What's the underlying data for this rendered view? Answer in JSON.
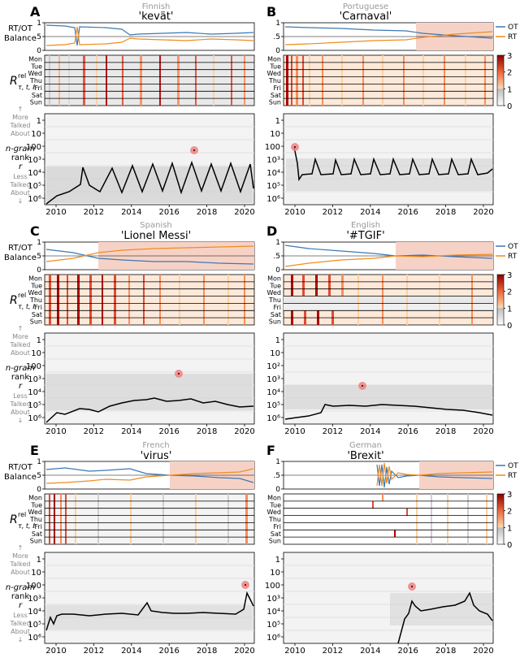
{
  "figure": {
    "ylabels": {
      "balance": "RT/OT Balance",
      "rtel": "R",
      "rtel_sup": "rel",
      "rtel_sub": "τ, t, ℓ",
      "more": [
        "↑",
        "More",
        "Talked",
        "About"
      ],
      "rank": [
        "n-gram",
        "rank",
        "r"
      ],
      "less": [
        "Less",
        "Talked",
        "About",
        "↓"
      ]
    },
    "days": [
      "Mon",
      "Tue",
      "Wed",
      "Thu",
      "Fri",
      "Sat",
      "Sun"
    ],
    "balance_ticks": [
      "1",
      ".5",
      "0"
    ],
    "legend": {
      "ot": "OT",
      "rt": "RT"
    },
    "colorbar": {
      "ticks": [
        "0",
        "1",
        "2",
        "3"
      ],
      "range": [
        0,
        3
      ]
    },
    "rank_ticks": [
      "1",
      "10",
      "100",
      "10³",
      "10⁴",
      "10⁵",
      "10⁶"
    ],
    "rank_ticks_d": [
      "1",
      "10",
      "10²",
      "10³",
      "10⁴",
      "10⁵",
      "10⁶"
    ],
    "x_ticks": [
      "2010",
      "2012",
      "2014",
      "2016",
      "2018",
      "2020"
    ],
    "colors": {
      "ot": "#3c78b4",
      "rt": "#f08c1e",
      "rank_line": "#000000",
      "shading": "#f6d2c6",
      "marker": "#f08080"
    }
  },
  "chart_data": [
    {
      "id": "A",
      "language": "Finnish",
      "ngram": "'kevät'",
      "type": "line",
      "x_range": [
        2009.9,
        2020.6
      ],
      "y_scale": "log rank, 1 (top) to 10⁶ (bottom)",
      "ot_level": 0.78,
      "rt_level": 0.22,
      "peak_marker": {
        "year": 2017.4,
        "rank": 40
      },
      "rank_series": [
        [
          2010,
          1000000
        ],
        [
          2010.5,
          200000
        ],
        [
          2011.2,
          100000
        ],
        [
          2011.4,
          10000
        ],
        [
          2012,
          100000
        ],
        [
          2012.3,
          300000
        ],
        [
          2013.3,
          10000
        ],
        [
          2013.8,
          200000
        ],
        [
          2014.4,
          8000
        ],
        [
          2015,
          200000
        ],
        [
          2015.4,
          6000
        ],
        [
          2016,
          200000
        ],
        [
          2016.4,
          6000
        ],
        [
          2017,
          200000
        ],
        [
          2017.4,
          4000
        ],
        [
          2018,
          150000
        ],
        [
          2018.4,
          5000
        ],
        [
          2019,
          200000
        ],
        [
          2019.4,
          6000
        ],
        [
          2020,
          200000
        ],
        [
          2020.4,
          6000
        ],
        [
          2020.5,
          80000
        ]
      ],
      "shaded_years": []
    },
    {
      "id": "B",
      "language": "Portuguese",
      "ngram": "'Carnaval'",
      "type": "line",
      "x_range": [
        2009.9,
        2020.6
      ],
      "ot_level": 0.7,
      "rt_level": 0.35,
      "peak_marker": {
        "year": 2010.1,
        "rank": 100
      },
      "rank_series": [
        [
          2010,
          100
        ],
        [
          2010.2,
          10000
        ],
        [
          2010.5,
          50000
        ],
        [
          2011,
          30000
        ],
        [
          2011.2,
          3000
        ],
        [
          2011.5,
          50000
        ],
        [
          2012.2,
          3000
        ],
        [
          2012.5,
          50000
        ],
        [
          2013.2,
          3000
        ],
        [
          2013.5,
          50000
        ],
        [
          2014.2,
          3000
        ],
        [
          2014.5,
          50000
        ],
        [
          2015.2,
          3000
        ],
        [
          2015.5,
          50000
        ],
        [
          2016.2,
          3000
        ],
        [
          2016.5,
          40000
        ],
        [
          2017.2,
          3000
        ],
        [
          2017.5,
          30000
        ],
        [
          2018.2,
          2000
        ],
        [
          2018.5,
          30000
        ],
        [
          2019.2,
          2000
        ],
        [
          2019.5,
          30000
        ],
        [
          2020.2,
          2000
        ],
        [
          2020.5,
          8000
        ]
      ],
      "shaded_years": [
        [
          2017.3,
          2020.6
        ]
      ]
    },
    {
      "id": "C",
      "language": "Spanish",
      "ngram": "'Lionel Messi'",
      "type": "line",
      "x_range": [
        2009.9,
        2020.6
      ],
      "ot_level": 0.35,
      "rt_level": 0.8,
      "peak_marker": {
        "year": 2016.5,
        "rank": 300
      },
      "rank_series": [
        [
          2010,
          1000000
        ],
        [
          2011,
          200000
        ],
        [
          2012,
          150000
        ],
        [
          2013,
          80000
        ],
        [
          2014,
          50000
        ],
        [
          2015,
          40000
        ],
        [
          2016,
          50000
        ],
        [
          2017,
          40000
        ],
        [
          2018,
          60000
        ],
        [
          2019,
          100000
        ],
        [
          2020,
          80000
        ],
        [
          2020.5,
          100000
        ]
      ],
      "shaded_years": [
        [
          2012.4,
          2020.6
        ]
      ]
    },
    {
      "id": "D",
      "language": "English",
      "ngram": "'#TGIF'",
      "type": "line",
      "x_range": [
        2009.9,
        2020.6
      ],
      "ot_level": 0.6,
      "rt_level": 0.4,
      "peak_marker": {
        "year": 2013.8,
        "rank": 2000
      },
      "rank_series": [
        [
          2010,
          500000
        ],
        [
          2011,
          400000
        ],
        [
          2012,
          300000
        ],
        [
          2012.5,
          80000
        ],
        [
          2013,
          100000
        ],
        [
          2014,
          80000
        ],
        [
          2015,
          100000
        ],
        [
          2016,
          120000
        ],
        [
          2017,
          90000
        ],
        [
          2018,
          100000
        ],
        [
          2019,
          150000
        ],
        [
          2020,
          200000
        ],
        [
          2020.5,
          300000
        ]
      ],
      "shaded_years": [
        [
          2015.4,
          2020.6
        ]
      ]
    },
    {
      "id": "E",
      "language": "French",
      "ngram": "'virus'",
      "type": "line",
      "x_range": [
        2009.9,
        2020.6
      ],
      "ot_level": 0.6,
      "rt_level": 0.3,
      "peak_marker": {
        "year": 2020.2,
        "rank": 150
      },
      "rank_series": [
        [
          2010,
          100000
        ],
        [
          2010.5,
          20000
        ],
        [
          2011,
          10000
        ],
        [
          2012,
          10000
        ],
        [
          2013,
          12000
        ],
        [
          2014,
          10000
        ],
        [
          2014.8,
          2000
        ],
        [
          2015,
          8000
        ],
        [
          2016,
          9000
        ],
        [
          2017,
          10000
        ],
        [
          2018,
          9000
        ],
        [
          2019,
          10000
        ],
        [
          2020,
          8000
        ],
        [
          2020.2,
          200
        ],
        [
          2020.5,
          2000
        ]
      ],
      "shaded_years": [
        [
          2016.2,
          2020.6
        ]
      ]
    },
    {
      "id": "F",
      "language": "German",
      "ngram": "'Brexit'",
      "type": "line",
      "x_range": [
        2009.9,
        2020.6
      ],
      "ot_level": 0.45,
      "rt_level": 0.5,
      "peak_marker": {
        "year": 2016.5,
        "rank": 150
      },
      "rank_series": [
        [
          2015.5,
          1000000
        ],
        [
          2016,
          100000
        ],
        [
          2016.3,
          30000
        ],
        [
          2016.5,
          1000
        ],
        [
          2016.7,
          8000
        ],
        [
          2017,
          10000
        ],
        [
          2017.5,
          30000
        ],
        [
          2018,
          10000
        ],
        [
          2019,
          2000
        ],
        [
          2019.5,
          20000
        ],
        [
          2020,
          10000
        ],
        [
          2020.5,
          30000
        ]
      ],
      "shaded_years": [
        [
          2017.1,
          2020.6
        ]
      ]
    }
  ]
}
